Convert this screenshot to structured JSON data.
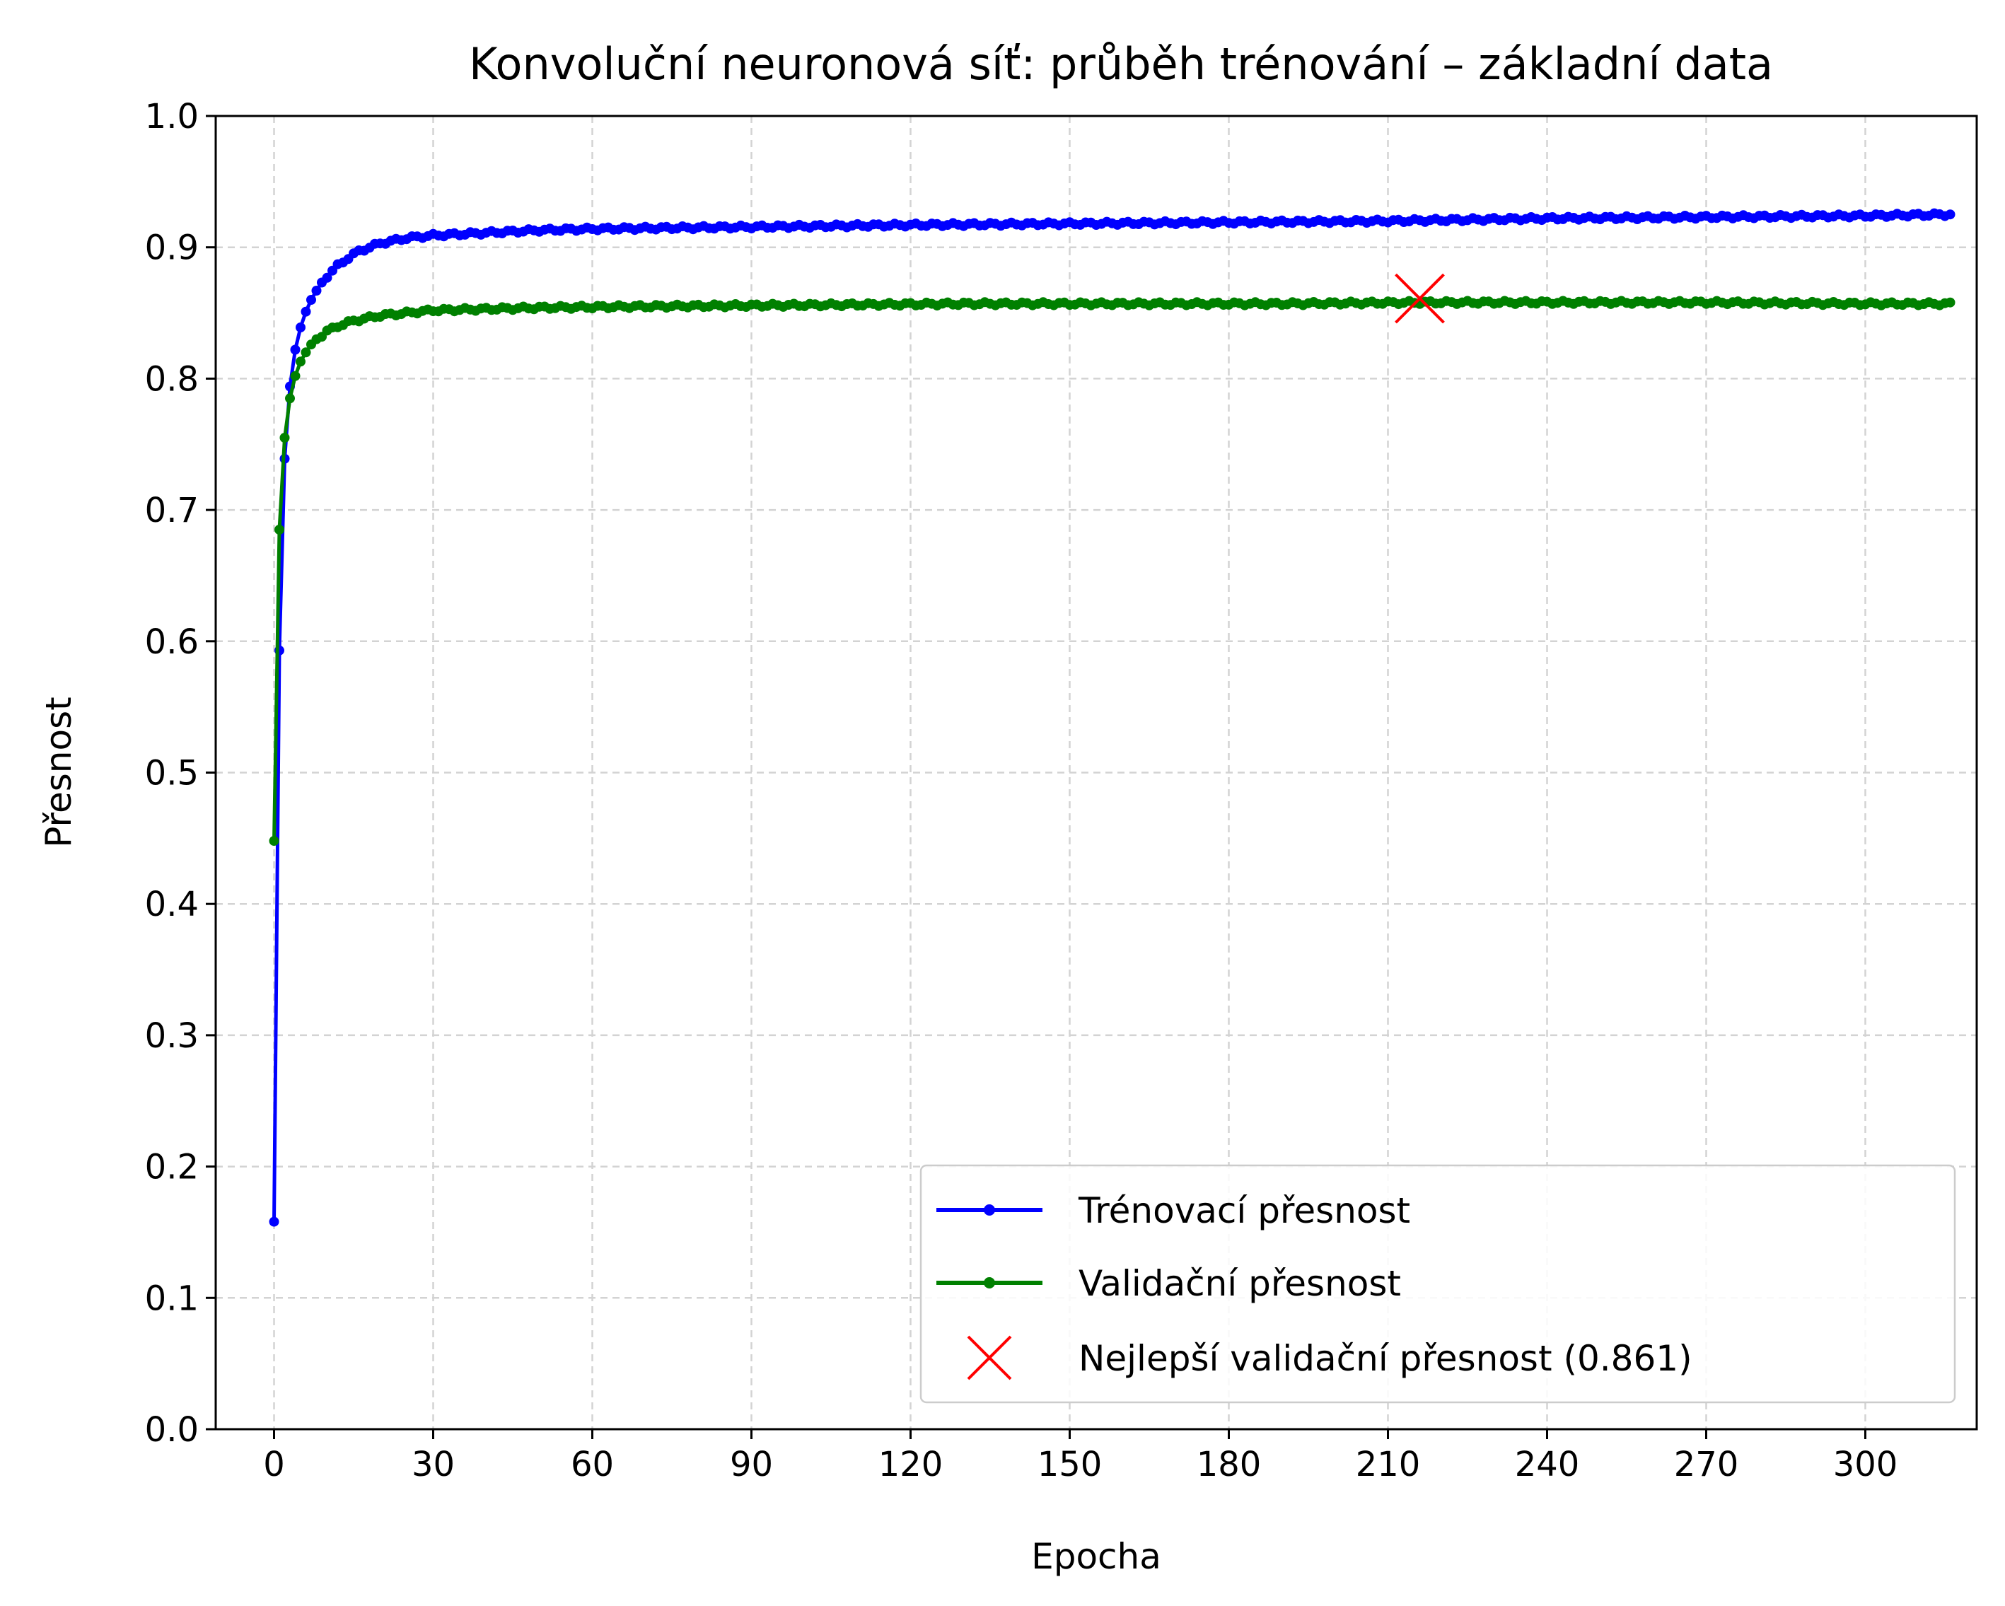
{
  "chart_data": {
    "type": "line",
    "title": "Konvoluční neuronová síť: průběh trénování – základní data",
    "xlabel": "Epocha",
    "ylabel": "Přesnost",
    "xlim": [
      -11,
      321
    ],
    "ylim": [
      0.0,
      1.0
    ],
    "xticks": [
      0,
      30,
      60,
      90,
      120,
      150,
      180,
      210,
      240,
      270,
      300
    ],
    "yticks": [
      0.0,
      0.1,
      0.2,
      0.3,
      0.4,
      0.5,
      0.6,
      0.7,
      0.8,
      0.9,
      1.0
    ],
    "grid": true,
    "legend_position": "lower right",
    "x_last": 316,
    "series": [
      {
        "name": "Trénovací přesnost",
        "color": "#0000ff",
        "marker": "dot",
        "points": [
          [
            0,
            0.158
          ],
          [
            1,
            0.593
          ],
          [
            2,
            0.739
          ],
          [
            3,
            0.794
          ],
          [
            4,
            0.822
          ],
          [
            5,
            0.839
          ],
          [
            6,
            0.851
          ],
          [
            7,
            0.86
          ],
          [
            8,
            0.867
          ],
          [
            9,
            0.873
          ],
          [
            10,
            0.878
          ],
          [
            12,
            0.886
          ],
          [
            14,
            0.892
          ],
          [
            16,
            0.897
          ],
          [
            18,
            0.9
          ],
          [
            20,
            0.903
          ],
          [
            25,
            0.907
          ],
          [
            30,
            0.909
          ],
          [
            40,
            0.911
          ],
          [
            50,
            0.913
          ],
          [
            60,
            0.914
          ],
          [
            80,
            0.915
          ],
          [
            100,
            0.916
          ],
          [
            120,
            0.917
          ],
          [
            150,
            0.918
          ],
          [
            180,
            0.919
          ],
          [
            210,
            0.92
          ],
          [
            240,
            0.922
          ],
          [
            270,
            0.923
          ],
          [
            300,
            0.924
          ],
          [
            316,
            0.925
          ]
        ]
      },
      {
        "name": "Validační přesnost",
        "color": "#008000",
        "marker": "dot",
        "points": [
          [
            0,
            0.448
          ],
          [
            1,
            0.685
          ],
          [
            2,
            0.755
          ],
          [
            3,
            0.785
          ],
          [
            4,
            0.802
          ],
          [
            5,
            0.813
          ],
          [
            6,
            0.82
          ],
          [
            7,
            0.826
          ],
          [
            8,
            0.83
          ],
          [
            10,
            0.836
          ],
          [
            12,
            0.84
          ],
          [
            15,
            0.844
          ],
          [
            20,
            0.848
          ],
          [
            25,
            0.85
          ],
          [
            30,
            0.852
          ],
          [
            40,
            0.853
          ],
          [
            50,
            0.854
          ],
          [
            70,
            0.855
          ],
          [
            100,
            0.856
          ],
          [
            130,
            0.857
          ],
          [
            160,
            0.857
          ],
          [
            190,
            0.857
          ],
          [
            216,
            0.858
          ],
          [
            240,
            0.858
          ],
          [
            270,
            0.858
          ],
          [
            300,
            0.857
          ],
          [
            316,
            0.857
          ]
        ]
      }
    ],
    "best": {
      "name": "Nejlepší validační přesnost (0.861)",
      "color": "#ff0000",
      "marker": "x",
      "x": 216,
      "y": 0.861
    }
  }
}
